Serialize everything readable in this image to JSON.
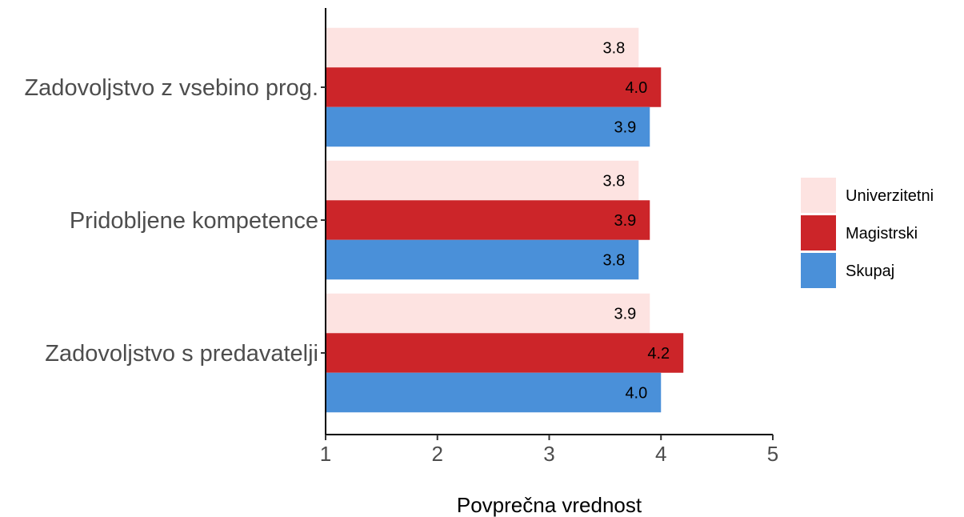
{
  "chart_data": {
    "type": "bar",
    "orientation": "horizontal",
    "categories": [
      "Zadovoljstvo z vsebino prog.",
      "Pridobljene kompetence",
      "Zadovoljstvo s predavatelji"
    ],
    "series": [
      {
        "name": "Univerzitetni",
        "color": "#fde3e1",
        "values": [
          3.8,
          3.8,
          3.9
        ],
        "labels": [
          "3.8",
          "3.8",
          "3.9"
        ]
      },
      {
        "name": "Magistrski",
        "color": "#cc2529",
        "values": [
          4.0,
          3.9,
          4.2
        ],
        "labels": [
          "4.0",
          "3.9",
          "4.2"
        ]
      },
      {
        "name": "Skupaj",
        "color": "#4a90d9",
        "values": [
          3.9,
          3.8,
          4.0
        ],
        "labels": [
          "3.9",
          "3.8",
          "4.0"
        ]
      }
    ],
    "xlabel": "Povprečna vrednost",
    "ylabel": "",
    "xlim": [
      1,
      5
    ],
    "xticks": [
      1,
      2,
      3,
      4,
      5
    ],
    "xtick_labels": [
      "1",
      "2",
      "3",
      "4",
      "5"
    ],
    "grid": false,
    "legend_position": "right"
  }
}
